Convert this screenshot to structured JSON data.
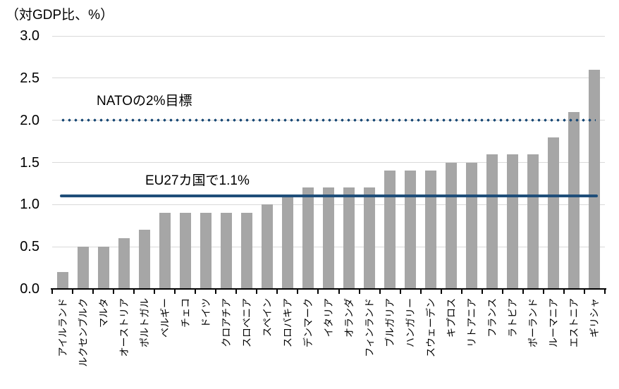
{
  "chart_data": {
    "type": "bar",
    "unit_label": "（対GDP比、%）",
    "categories": [
      "アイルランド",
      "ルクセンブルク",
      "マルタ",
      "オーストリア",
      "ポルトガル",
      "ベルギー",
      "チェコ",
      "ドイツ",
      "クロアチア",
      "スロベニア",
      "スペイン",
      "スロバキア",
      "デンマーク",
      "イタリア",
      "オランダ",
      "フィンランド",
      "ブルガリア",
      "ハンガリー",
      "スウェーデン",
      "キプロス",
      "リトアニア",
      "フランス",
      "ラトビア",
      "ポーランド",
      "ルーマニア",
      "エストニア",
      "ギリシャ"
    ],
    "values": [
      0.2,
      0.5,
      0.5,
      0.6,
      0.7,
      0.9,
      0.9,
      0.9,
      0.9,
      0.9,
      1.0,
      1.1,
      1.2,
      1.2,
      1.2,
      1.2,
      1.4,
      1.4,
      1.4,
      1.5,
      1.5,
      1.6,
      1.6,
      1.6,
      1.8,
      2.1,
      2.6
    ],
    "ylim": [
      0,
      3.0
    ],
    "ytick_step": 0.5,
    "yticks": [
      "0.0",
      "0.5",
      "1.0",
      "1.5",
      "2.0",
      "2.5",
      "3.0"
    ],
    "grid": true,
    "bar_color": "#a6a6a6",
    "gridline_color": "#d9d9d9",
    "axis_color": "#000000",
    "line_color": "#1f4e79",
    "reference_lines": [
      {
        "label": "NATOの2%目標",
        "value": 2.0,
        "style": "dotted"
      },
      {
        "label": "EU27カ国で1.1%",
        "value": 1.1,
        "style": "solid"
      }
    ]
  }
}
